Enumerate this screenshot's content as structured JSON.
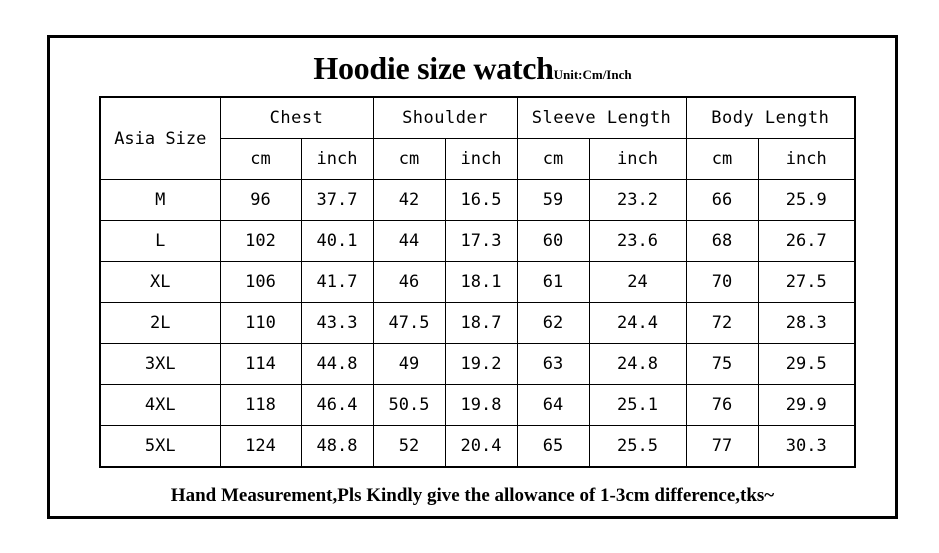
{
  "title": "Hoodie size watch",
  "unit_note": "Unit:Cm/Inch",
  "table": {
    "row_header": "Asia Size",
    "groups": [
      "Chest",
      "Shoulder",
      "Sleeve Length",
      "Body Length"
    ],
    "subheaders": [
      "cm",
      "inch",
      "cm",
      "inch",
      "cm",
      "inch",
      "cm",
      "inch"
    ],
    "rows": [
      {
        "size": "M",
        "values": [
          "96",
          "37.7",
          "42",
          "16.5",
          "59",
          "23.2",
          "66",
          "25.9"
        ]
      },
      {
        "size": "L",
        "values": [
          "102",
          "40.1",
          "44",
          "17.3",
          "60",
          "23.6",
          "68",
          "26.7"
        ]
      },
      {
        "size": "XL",
        "values": [
          "106",
          "41.7",
          "46",
          "18.1",
          "61",
          "24",
          "70",
          "27.5"
        ]
      },
      {
        "size": "2L",
        "values": [
          "110",
          "43.3",
          "47.5",
          "18.7",
          "62",
          "24.4",
          "72",
          "28.3"
        ]
      },
      {
        "size": "3XL",
        "values": [
          "114",
          "44.8",
          "49",
          "19.2",
          "63",
          "24.8",
          "75",
          "29.5"
        ]
      },
      {
        "size": "4XL",
        "values": [
          "118",
          "46.4",
          "50.5",
          "19.8",
          "64",
          "25.1",
          "76",
          "29.9"
        ]
      },
      {
        "size": "5XL",
        "values": [
          "124",
          "48.8",
          "52",
          "20.4",
          "65",
          "25.5",
          "77",
          "30.3"
        ]
      }
    ]
  },
  "footer_note": "Hand Measurement,Pls Kindly give the allowance of 1-3cm difference,tks~"
}
